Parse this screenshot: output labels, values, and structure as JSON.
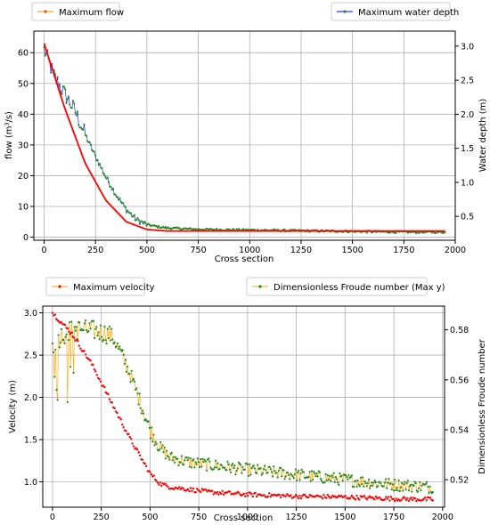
{
  "colors": {
    "max_flow": "#ff0000",
    "max_flow_legend": "#ff8c00",
    "max_depth": "#0000ff",
    "max_depth_points": "#228b22",
    "max_velocity": "#ff0000",
    "froude_line": "#ffa500",
    "froude_points": "#228b22"
  },
  "chart_data": [
    {
      "type": "line",
      "x_max": 1950,
      "xlabel": "Cross section",
      "ylabel": "flow (m³/s)",
      "ylabel2": "Water depth (m)",
      "xlim": [
        -50,
        2000
      ],
      "ylim": [
        -1,
        67
      ],
      "y2lim": [
        0.15,
        3.22
      ],
      "xticks": [
        "0",
        "250",
        "500",
        "750",
        "1000",
        "1250",
        "1500",
        "1750",
        "2000"
      ],
      "yticks": [
        "0",
        "10",
        "20",
        "30",
        "40",
        "50",
        "60"
      ],
      "y2ticks": [
        "0.5",
        "1.0",
        "1.5",
        "2.0",
        "2.5",
        "3.0"
      ],
      "grid": true,
      "legend_placement": "above-left and above-right",
      "series": [
        {
          "name": "Maximum flow",
          "axis": "left",
          "x": [
            0,
            100,
            200,
            300,
            400,
            500,
            600,
            750,
            1000,
            1250,
            1500,
            1750,
            1950
          ],
          "y": [
            63,
            42,
            24,
            12,
            5,
            2.5,
            2,
            2,
            2,
            2,
            2,
            2,
            2
          ]
        },
        {
          "name": "Maximum water depth",
          "axis": "right",
          "x": [
            0,
            50,
            100,
            150,
            200,
            250,
            300,
            350,
            400,
            450,
            500,
            550,
            600,
            750,
            1000,
            1250,
            1500,
            1750,
            1950
          ],
          "y": [
            2.95,
            2.55,
            2.3,
            2.05,
            1.7,
            1.38,
            1.08,
            0.82,
            0.6,
            0.45,
            0.38,
            0.35,
            0.33,
            0.31,
            0.3,
            0.29,
            0.28,
            0.27,
            0.27
          ]
        }
      ]
    },
    {
      "type": "scatter",
      "x_max": 1950,
      "xlabel": "Cross section",
      "ylabel": "Velocity (m)",
      "ylabel2": "Dimensionless Froude number",
      "xlim": [
        -50,
        2010
      ],
      "ylim": [
        0.7,
        3.08
      ],
      "y2lim": [
        0.509,
        0.5895
      ],
      "xticks": [
        "0",
        "250",
        "500",
        "750",
        "1000",
        "1250",
        "1500",
        "1750",
        "2000"
      ],
      "yticks": [
        "1.0",
        "1.5",
        "2.0",
        "2.5",
        "3.0"
      ],
      "y2ticks": [
        "0.52",
        "0.54",
        "0.56",
        "0.58"
      ],
      "grid": true,
      "legend_placement": "above-left and above-right",
      "series": [
        {
          "name": "Maximum velocity",
          "axis": "left",
          "x": [
            0,
            100,
            200,
            300,
            400,
            500,
            550,
            600,
            700,
            800,
            1000,
            1250,
            1500,
            1750,
            1950
          ],
          "y": [
            3.0,
            2.75,
            2.4,
            1.95,
            1.5,
            1.1,
            0.98,
            0.94,
            0.91,
            0.88,
            0.85,
            0.83,
            0.82,
            0.8,
            0.79
          ]
        },
        {
          "name": "Dimensionless Froude number (Max y)",
          "axis": "right",
          "x": [
            0,
            50,
            100,
            200,
            300,
            350,
            400,
            450,
            500,
            550,
            600,
            700,
            800,
            1000,
            1250,
            1500,
            1750,
            1950
          ],
          "y": [
            0.574,
            0.578,
            0.58,
            0.58,
            0.578,
            0.571,
            0.562,
            0.551,
            0.54,
            0.533,
            0.529,
            0.527,
            0.526,
            0.524,
            0.522,
            0.52,
            0.518,
            0.517
          ]
        }
      ]
    }
  ]
}
